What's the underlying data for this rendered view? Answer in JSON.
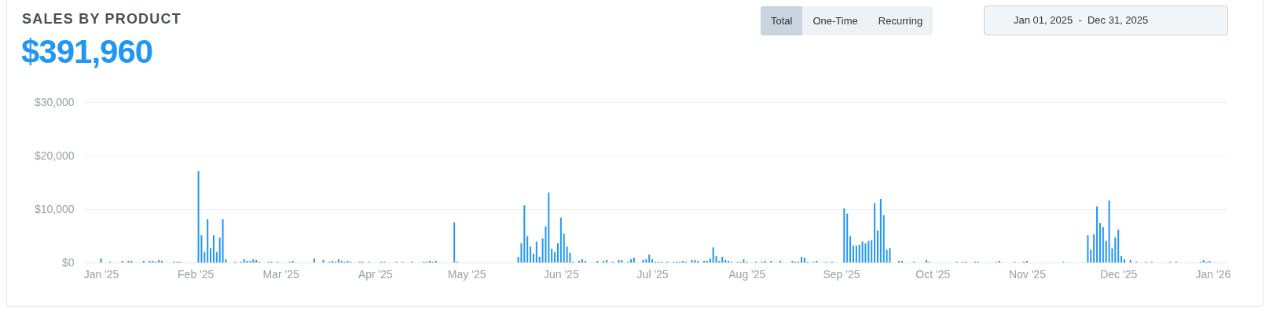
{
  "chart_data": {
    "type": "bar",
    "title": "SALES BY PRODUCT",
    "subtitle": "$391,960",
    "annotations": [
      "Total",
      "One-Time",
      "Recurring",
      "Jan 01, 2025  -  Dec 31, 2025"
    ],
    "x": [
      "2025-01-01",
      "2025-01-04",
      "2025-01-08",
      "2025-01-10",
      "2025-01-11",
      "2025-01-15",
      "2025-01-17",
      "2025-01-18",
      "2025-01-19",
      "2025-01-20",
      "2025-01-21",
      "2025-01-25",
      "2025-01-26",
      "2025-01-27",
      "2025-02-02",
      "2025-02-03",
      "2025-02-04",
      "2025-02-05",
      "2025-02-06",
      "2025-02-07",
      "2025-02-08",
      "2025-02-09",
      "2025-02-10",
      "2025-02-11",
      "2025-02-14",
      "2025-02-16",
      "2025-02-17",
      "2025-02-18",
      "2025-02-19",
      "2025-02-20",
      "2025-02-21",
      "2025-02-22",
      "2025-02-25",
      "2025-02-26",
      "2025-02-28",
      "2025-03-04",
      "2025-03-05",
      "2025-03-12",
      "2025-03-15",
      "2025-03-17",
      "2025-03-18",
      "2025-03-19",
      "2025-03-20",
      "2025-03-21",
      "2025-03-22",
      "2025-03-23",
      "2025-03-24",
      "2025-03-27",
      "2025-03-28",
      "2025-03-30",
      "2025-04-03",
      "2025-04-04",
      "2025-04-08",
      "2025-04-10",
      "2025-04-13",
      "2025-04-17",
      "2025-04-18",
      "2025-04-19",
      "2025-04-20",
      "2025-04-21",
      "2025-04-27",
      "2025-04-28",
      "2025-05-18",
      "2025-05-19",
      "2025-05-20",
      "2025-05-21",
      "2025-05-22",
      "2025-05-23",
      "2025-05-24",
      "2025-05-25",
      "2025-05-26",
      "2025-05-27",
      "2025-05-28",
      "2025-05-29",
      "2025-05-30",
      "2025-05-31",
      "2025-06-01",
      "2025-06-02",
      "2025-06-03",
      "2025-06-04",
      "2025-06-05",
      "2025-06-07",
      "2025-06-08",
      "2025-06-09",
      "2025-06-13",
      "2025-06-15",
      "2025-06-16",
      "2025-06-18",
      "2025-06-20",
      "2025-06-21",
      "2025-06-23",
      "2025-06-24",
      "2025-06-25",
      "2025-06-28",
      "2025-06-29",
      "2025-06-30",
      "2025-07-01",
      "2025-07-02",
      "2025-07-03",
      "2025-07-04",
      "2025-07-06",
      "2025-07-08",
      "2025-07-09",
      "2025-07-10",
      "2025-07-11",
      "2025-07-12",
      "2025-07-14",
      "2025-07-15",
      "2025-07-16",
      "2025-07-18",
      "2025-07-19",
      "2025-07-20",
      "2025-07-21",
      "2025-07-22",
      "2025-07-23",
      "2025-07-24",
      "2025-07-25",
      "2025-07-26",
      "2025-07-27",
      "2025-07-29",
      "2025-07-30",
      "2025-07-31",
      "2025-08-01",
      "2025-08-04",
      "2025-08-06",
      "2025-08-07",
      "2025-08-09",
      "2025-08-12",
      "2025-08-16",
      "2025-08-17",
      "2025-08-18",
      "2025-08-19",
      "2025-08-20",
      "2025-08-21",
      "2025-08-23",
      "2025-08-24",
      "2025-08-27",
      "2025-08-29",
      "2025-09-02",
      "2025-09-03",
      "2025-09-04",
      "2025-09-05",
      "2025-09-06",
      "2025-09-07",
      "2025-09-08",
      "2025-09-09",
      "2025-09-10",
      "2025-09-11",
      "2025-09-12",
      "2025-09-13",
      "2025-09-14",
      "2025-09-15",
      "2025-09-16",
      "2025-09-17",
      "2025-09-20",
      "2025-09-21",
      "2025-09-25",
      "2025-09-29",
      "2025-09-30",
      "2025-10-09",
      "2025-10-11",
      "2025-10-12",
      "2025-10-15",
      "2025-10-16",
      "2025-10-22",
      "2025-10-23",
      "2025-10-28",
      "2025-10-31",
      "2025-11-01",
      "2025-11-13",
      "2025-11-21",
      "2025-11-22",
      "2025-11-23",
      "2025-11-24",
      "2025-11-25",
      "2025-11-26",
      "2025-11-27",
      "2025-11-28",
      "2025-11-29",
      "2025-11-30",
      "2025-12-01",
      "2025-12-02",
      "2025-12-03",
      "2025-12-05",
      "2025-12-07",
      "2025-12-10",
      "2025-12-12",
      "2025-12-18",
      "2025-12-20",
      "2025-12-28",
      "2025-12-29",
      "2025-12-30",
      "2025-12-31"
    ],
    "values": [
      750,
      150,
      300,
      300,
      300,
      300,
      300,
      300,
      150,
      450,
      300,
      150,
      150,
      150,
      17100,
      5100,
      1950,
      8100,
      2700,
      5100,
      1950,
      4650,
      8100,
      600,
      150,
      150,
      600,
      300,
      300,
      600,
      450,
      150,
      150,
      150,
      150,
      150,
      300,
      750,
      450,
      150,
      300,
      150,
      600,
      300,
      150,
      300,
      150,
      150,
      150,
      150,
      150,
      150,
      150,
      150,
      150,
      150,
      150,
      300,
      150,
      300,
      7500,
      150,
      1050,
      3600,
      10700,
      4950,
      3000,
      1650,
      3900,
      1050,
      4500,
      6750,
      13100,
      2550,
      1950,
      3600,
      8400,
      5400,
      3000,
      1800,
      150,
      300,
      600,
      300,
      300,
      300,
      450,
      150,
      450,
      450,
      150,
      600,
      900,
      450,
      600,
      1500,
      600,
      150,
      150,
      150,
      150,
      150,
      150,
      150,
      300,
      150,
      450,
      450,
      300,
      300,
      300,
      750,
      2850,
      1200,
      300,
      1050,
      450,
      300,
      150,
      150,
      150,
      600,
      150,
      150,
      150,
      300,
      300,
      300,
      300,
      150,
      150,
      1050,
      900,
      150,
      150,
      300,
      150,
      150,
      10100,
      9150,
      4950,
      3150,
      3150,
      3300,
      3900,
      3600,
      4050,
      4200,
      11100,
      6000,
      11900,
      8850,
      2400,
      2700,
      300,
      300,
      150,
      450,
      150,
      150,
      150,
      150,
      150,
      150,
      150,
      300,
      150,
      150,
      300,
      150,
      5100,
      2400,
      5250,
      10500,
      7350,
      6600,
      4050,
      11600,
      2700,
      4650,
      6150,
      1200,
      600,
      450,
      150,
      150,
      150,
      150,
      150,
      150,
      450,
      150,
      300
    ],
    "color": "#2196f3",
    "xlim": [
      "2024-12-28",
      "2026-01-04"
    ],
    "xticks": [
      {
        "value": "2025-01-01",
        "label": "Jan '25"
      },
      {
        "value": "2025-02-01",
        "label": "Feb '25"
      },
      {
        "value": "2025-03-01",
        "label": "Mar '25"
      },
      {
        "value": "2025-04-01",
        "label": "Apr '25"
      },
      {
        "value": "2025-05-01",
        "label": "May '25"
      },
      {
        "value": "2025-06-01",
        "label": "Jun '25"
      },
      {
        "value": "2025-07-01",
        "label": "Jul '25"
      },
      {
        "value": "2025-08-01",
        "label": "Aug '25"
      },
      {
        "value": "2025-09-01",
        "label": "Sep '25"
      },
      {
        "value": "2025-10-01",
        "label": "Oct '25"
      },
      {
        "value": "2025-11-01",
        "label": "Nov '25"
      },
      {
        "value": "2025-12-01",
        "label": "Dec '25"
      },
      {
        "value": "2026-01-01",
        "label": "Jan '26"
      }
    ],
    "ylim": [
      0,
      30000
    ],
    "yticks": [
      {
        "value": 0,
        "label": "$0"
      },
      {
        "value": 10000,
        "label": "$10,000"
      },
      {
        "value": 20000,
        "label": "$20,000"
      },
      {
        "value": 30000,
        "label": "$30,000"
      }
    ],
    "grid": "y"
  }
}
